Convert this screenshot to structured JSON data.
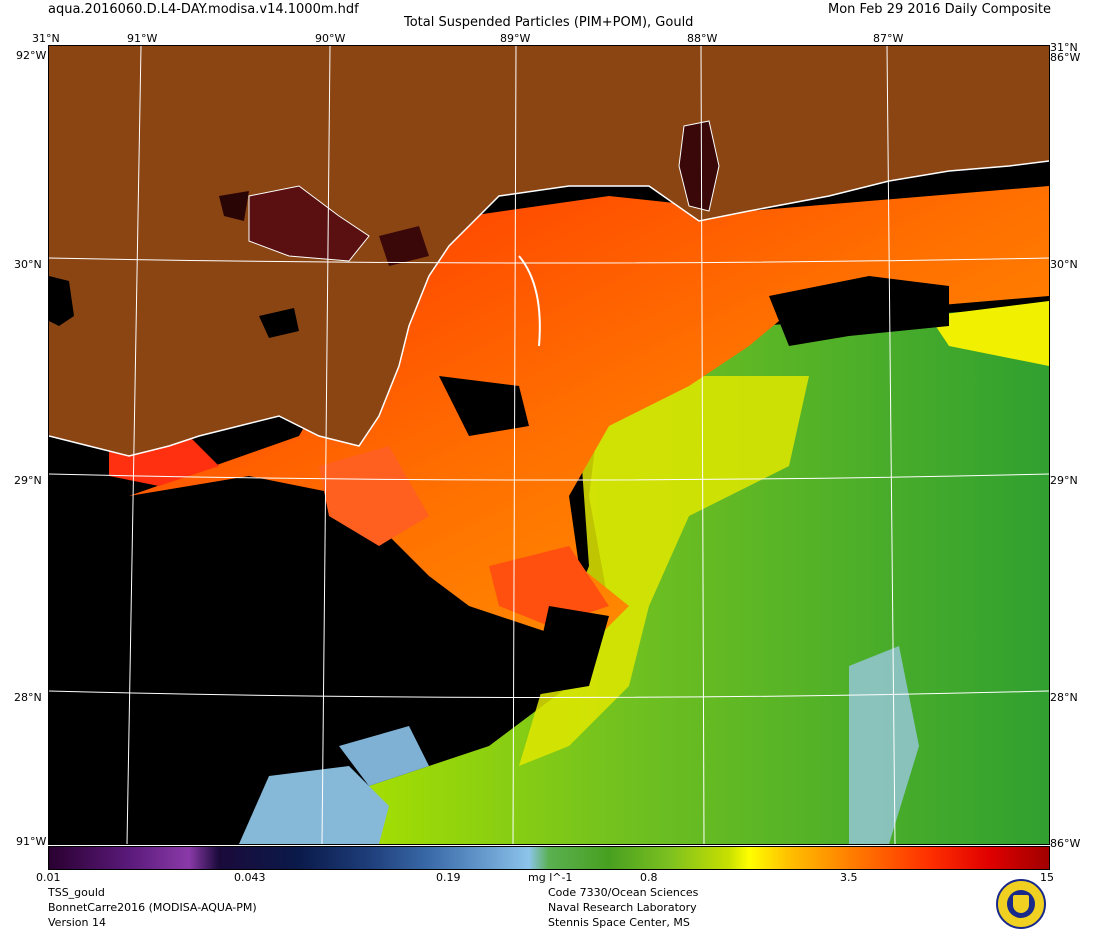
{
  "header": {
    "filename": "aqua.2016060.D.L4-DAY.modisa.v14.1000m.hdf",
    "title": "Total Suspended Particles (PIM+POM), Gould",
    "date_label": "Mon Feb 29 2016 Daily Composite"
  },
  "map": {
    "lon_ticks": [
      "91°W",
      "90°W",
      "89°W",
      "88°W",
      "87°W"
    ],
    "lat_ticks": [
      "30°N",
      "29°N",
      "28°N"
    ],
    "corner_top": "31°N",
    "corner_bottom": "91°W",
    "edge_label": "92°W",
    "edge_label_right": "86°W",
    "colors": {
      "land": "#8b4513",
      "nodata": "#000000",
      "coast": "#ffffff",
      "grid": "#ffffff"
    }
  },
  "colorbar": {
    "ticks": [
      "0.01",
      "0.043",
      "0.19",
      "0.8",
      "3.5",
      "15"
    ],
    "unit": "mg l^-1",
    "scale": "log"
  },
  "footer": {
    "left": [
      "TSS_gould",
      "BonnetCarre2016 (MODISA-AQUA-PM)",
      "Version 14"
    ],
    "center": [
      "Code 7330/Ocean Sciences",
      "Naval Research Laboratory",
      "Stennis Space Center, MS"
    ]
  }
}
